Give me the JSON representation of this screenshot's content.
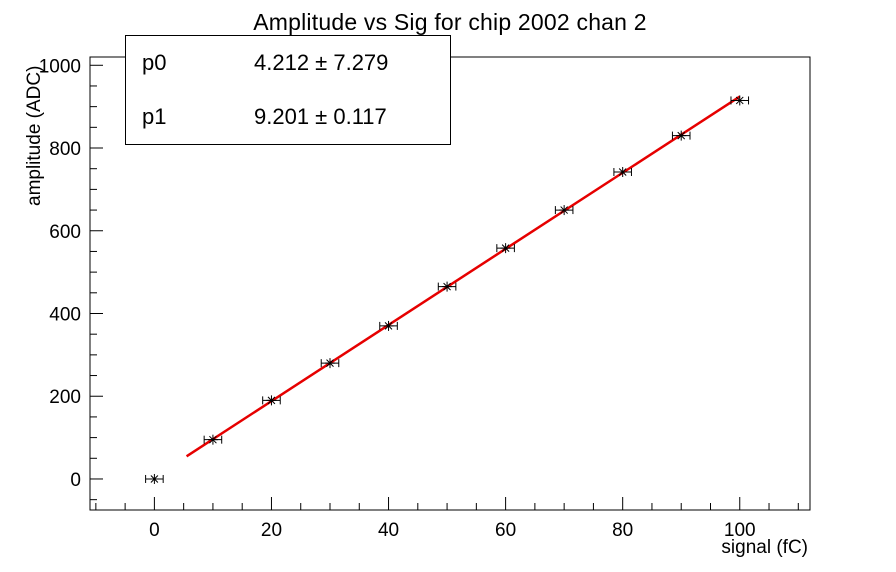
{
  "stats_box": {
    "rows": [
      {
        "name": "p0",
        "value": "4.212 ± 7.279"
      },
      {
        "name": "p1",
        "value": "9.201 ± 0.117"
      }
    ]
  },
  "chart_data": {
    "type": "scatter",
    "title": "Amplitude vs Sig for chip 2002 chan 2",
    "xlabel": "signal (fC)",
    "ylabel": "amplitude (ADC)",
    "xlim": [
      -11,
      112
    ],
    "ylim": [
      -75,
      1020
    ],
    "x_ticks": [
      0,
      20,
      40,
      60,
      80,
      100
    ],
    "y_ticks": [
      0,
      200,
      400,
      600,
      800,
      1000
    ],
    "x_minor_step": 5,
    "y_minor_step": 50,
    "grid": false,
    "series": [
      {
        "name": "amplitude-vs-signal-points",
        "marker": "asterisk",
        "color": "#000000",
        "x": [
          0,
          10,
          20,
          30,
          40,
          50,
          60,
          70,
          80,
          90,
          100
        ],
        "y": [
          0,
          95,
          190,
          280,
          370,
          465,
          558,
          650,
          742,
          830,
          915
        ],
        "x_err": 1.5
      }
    ],
    "fit": {
      "name": "linear-fit",
      "color": "#e60000",
      "p0": 4.212,
      "p1": 9.201,
      "x_range": [
        5.5,
        100
      ]
    }
  }
}
